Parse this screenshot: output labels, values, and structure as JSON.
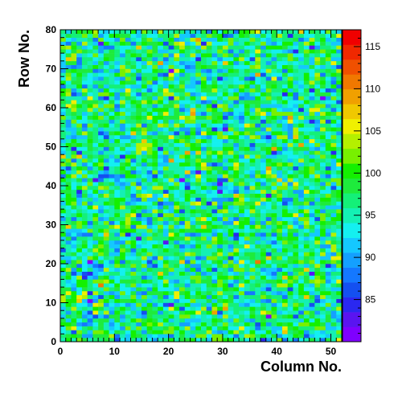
{
  "chart_data": {
    "type": "heatmap",
    "title": "",
    "xlabel": "Column No.",
    "ylabel": "Row No.",
    "xlim": [
      0,
      52
    ],
    "ylim": [
      0,
      80
    ],
    "n_columns": 52,
    "n_rows": 80,
    "x_ticks": [
      "0",
      "10",
      "20",
      "30",
      "40",
      "50"
    ],
    "y_ticks": [
      "0",
      "10",
      "20",
      "30",
      "40",
      "50",
      "60",
      "70",
      "80"
    ],
    "z_range": [
      80,
      117
    ],
    "z_ticks": [
      "85",
      "90",
      "95",
      "100",
      "105",
      "110",
      "115"
    ],
    "z_distribution": {
      "mean": 96,
      "spread": 4.5
    },
    "colormap": [
      "#7f00ff",
      "#5a14f0",
      "#2a28f0",
      "#1450f0",
      "#1478ff",
      "#14a0ff",
      "#14c8ff",
      "#14f0f0",
      "#14f0b4",
      "#14f078",
      "#1eeb3c",
      "#14f000",
      "#78f000",
      "#b4f000",
      "#f0f000",
      "#f0c800",
      "#f0a000",
      "#f07800",
      "#f05000",
      "#f02800",
      "#f00000"
    ]
  }
}
